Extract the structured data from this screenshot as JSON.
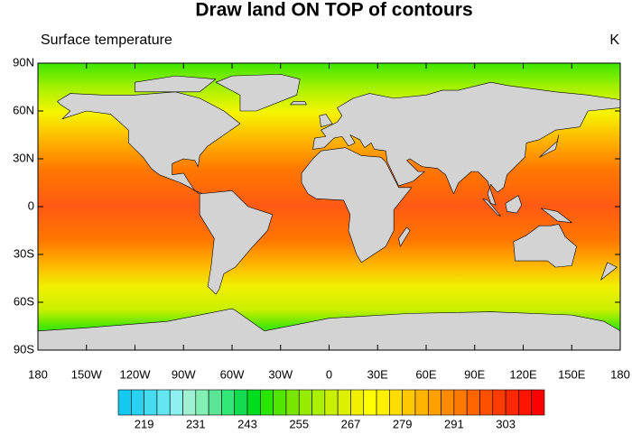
{
  "chart_data": {
    "type": "contour-map",
    "title": "Draw land ON TOP of contours",
    "subtitle": "Surface temperature",
    "units": "K",
    "xlim": [
      -180,
      180
    ],
    "ylim": [
      -90,
      90
    ],
    "xticks": [
      {
        "value": -180,
        "label": "180"
      },
      {
        "value": -150,
        "label": "150W"
      },
      {
        "value": -120,
        "label": "120W"
      },
      {
        "value": -90,
        "label": "90W"
      },
      {
        "value": -60,
        "label": "60W"
      },
      {
        "value": -30,
        "label": "30W"
      },
      0,
      {
        "value": 30,
        "label": "30E"
      },
      {
        "value": 60,
        "label": "60E"
      },
      {
        "value": 90,
        "label": "90E"
      },
      {
        "value": 120,
        "label": "120E"
      },
      {
        "value": 150,
        "label": "150E"
      },
      180
    ],
    "yticks": [
      {
        "value": 90,
        "label": "90N"
      },
      {
        "value": 60,
        "label": "60N"
      },
      {
        "value": 30,
        "label": "30N"
      },
      0,
      {
        "value": -30,
        "label": "30S"
      },
      {
        "value": -60,
        "label": "60S"
      },
      {
        "value": -90,
        "label": "90S"
      }
    ],
    "colorbar": {
      "colors": [
        "#14c8f0",
        "#28d2f0",
        "#46dcf0",
        "#64e6f0",
        "#8cf0f0",
        "#a0f0d2",
        "#82f0b4",
        "#5ae696",
        "#32e678",
        "#14dc50",
        "#00dc1e",
        "#28e600",
        "#50e600",
        "#78e600",
        "#96eb00",
        "#aaf000",
        "#c8f000",
        "#dcf000",
        "#f0f000",
        "#ffff00",
        "#fff000",
        "#ffdc00",
        "#ffc800",
        "#ffb400",
        "#ffa000",
        "#ff8c00",
        "#ff7800",
        "#ff6400",
        "#ff5000",
        "#ff3c00",
        "#ff2800",
        "#ff1400",
        "#ff0000"
      ],
      "lim": [
        213,
        312
      ],
      "ticks": [
        219,
        231,
        243,
        255,
        267,
        279,
        291,
        303
      ]
    }
  }
}
